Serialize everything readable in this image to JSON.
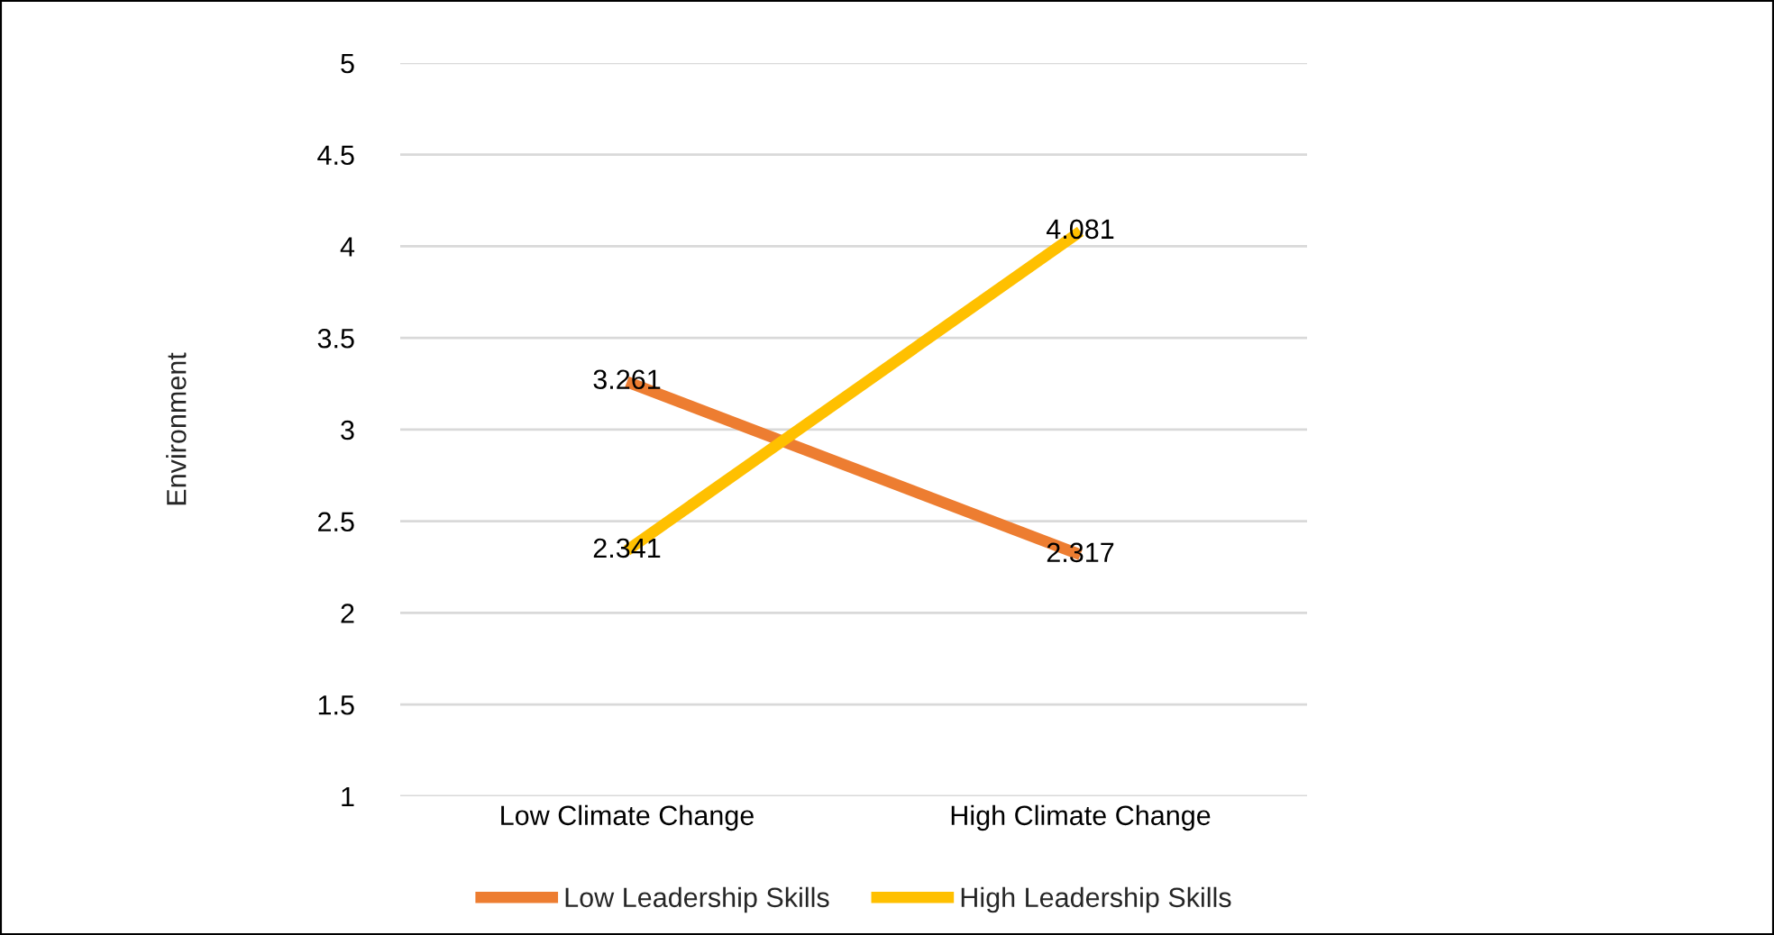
{
  "chart_data": {
    "type": "line",
    "ylabel": "Environment",
    "categories": [
      "Low Climate Change",
      "High Climate Change"
    ],
    "series": [
      {
        "name": "Low Leadership Skills",
        "color": "#ed7d31",
        "values": [
          3.261,
          2.317
        ]
      },
      {
        "name": "High Leadership Skills",
        "color": "#ffc000",
        "values": [
          2.341,
          4.081
        ]
      }
    ],
    "ylim": [
      1,
      5
    ],
    "yticks": [
      1,
      1.5,
      2,
      2.5,
      3,
      3.5,
      4,
      4.5,
      5
    ],
    "grid": "y",
    "legend": "bottom",
    "data_labels": true,
    "marker": "none",
    "line_style": "solid"
  }
}
